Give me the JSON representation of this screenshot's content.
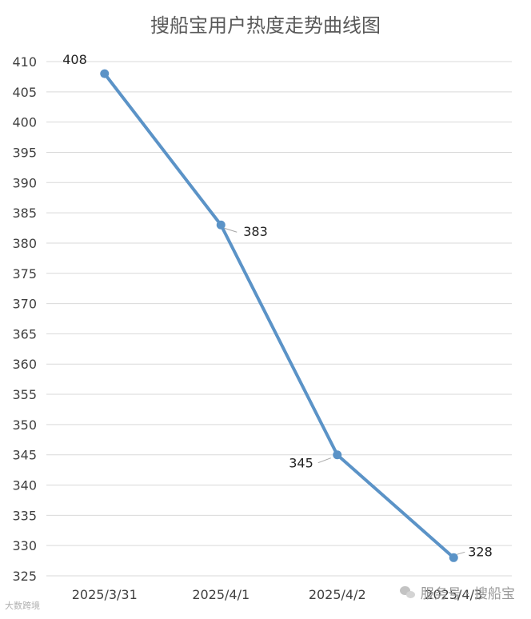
{
  "chart_data": {
    "type": "line",
    "title": "搜船宝用户热度走势曲线图",
    "categories": [
      "2025/3/31",
      "2025/4/1",
      "2025/4/2",
      "2025/4/3"
    ],
    "series": [
      {
        "values": [
          408,
          383,
          345,
          328
        ],
        "color": "#5b93c7"
      }
    ],
    "ylim": [
      325,
      410
    ],
    "ytick_step": 5,
    "grid": true,
    "xlabel": "",
    "ylabel": ""
  },
  "watermarks": {
    "left": "大数跨境",
    "right": "服务号 · 搜船宝"
  },
  "colors": {
    "line": "#5b93c7",
    "grid": "#d9d9d9",
    "title": "#595959",
    "tick": "#404040"
  }
}
